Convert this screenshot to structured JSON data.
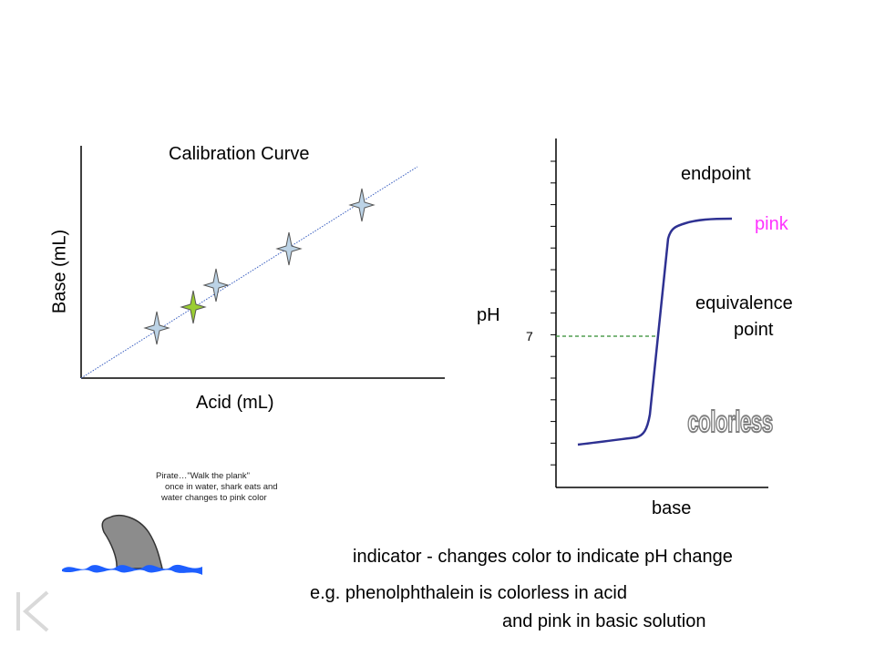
{
  "calibration": {
    "title": "Calibration Curve",
    "xlabel": "Acid (mL)",
    "ylabel": "Base (mL)"
  },
  "titration": {
    "ylabel": "pH",
    "xlabel": "base",
    "tick_label": "7",
    "endpoint_label": "endpoint",
    "pink_label": "pink",
    "equivalence_label_line1": "equivalence",
    "equivalence_label_line2": "point",
    "colorless_label": "colorless"
  },
  "pirate_note": {
    "line1": "Pirate…\"Walk the plank\"",
    "line2": "once in water, shark eats and",
    "line3": "water changes to pink color"
  },
  "indicator": {
    "line1": "indicator - changes color to indicate pH change",
    "line2": "e.g. phenolphthalein is colorless in acid",
    "line3": "and pink in basic solution"
  },
  "colors": {
    "curve": "#2e3192",
    "pink": "#ff33ff",
    "sparkle_blue": "#bcd3e6",
    "sparkle_green": "#9acd32",
    "shark": "#8c8c8c",
    "water": "#1e5fff",
    "dashed": "#2e8b2e"
  },
  "icons": [
    "sparkle-icon",
    "shark-fin-icon",
    "skip-to-start-icon"
  ]
}
